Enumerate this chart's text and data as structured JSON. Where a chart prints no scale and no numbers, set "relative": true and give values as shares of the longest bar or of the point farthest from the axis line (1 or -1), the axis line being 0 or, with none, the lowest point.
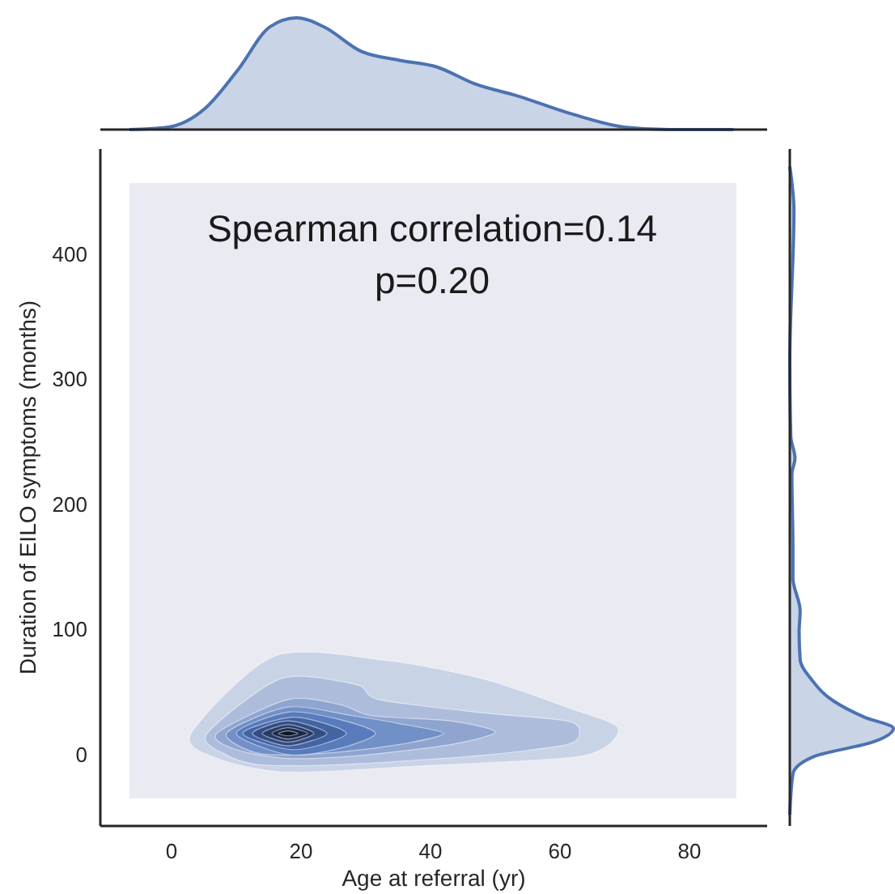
{
  "chart_data": [
    {
      "type": "area",
      "relative": true,
      "xlim": [
        -11,
        92
      ],
      "series": [
        {
          "color": "#4c72b0",
          "x": [
            -6.5,
            -0.7,
            5.2,
            10.2,
            15.2,
            19.3,
            23.5,
            29.3,
            35.2,
            41,
            46.8,
            53.5,
            61.8,
            70.2,
            76.8,
            86.8
          ],
          "values": [
            0,
            0.02,
            0.19,
            0.53,
            0.92,
            1,
            0.92,
            0.7,
            0.62,
            0.56,
            0.41,
            0.3,
            0.14,
            0.02,
            0,
            0
          ]
        }
      ]
    },
    {
      "type": "area",
      "xlabel": "Age at referral (yr)",
      "ylabel": "Duration of EILO symptoms (months)",
      "xlim": [
        -11,
        92
      ],
      "ylim": [
        -57,
        484
      ],
      "xticks": [
        0,
        20,
        40,
        60,
        80
      ],
      "yticks": [
        0,
        100,
        200,
        300,
        400
      ],
      "annotations": [
        "Spearman correlation=0.14",
        "p=0.20"
      ],
      "series": [
        {
          "color": "#c9d3e6",
          "x": [
            3,
            16,
            33.5,
            48.5,
            61,
            69,
            63.5,
            38.5,
            18,
            7
          ],
          "values": [
            17,
            79,
            75,
            60,
            38,
            21,
            -1,
            -9,
            -14,
            -3
          ]
        },
        {
          "color": "#aebcdc",
          "x": [
            5.5,
            17,
            28.5,
            32,
            47,
            61,
            63,
            61,
            47,
            26,
            13.5,
            8
          ],
          "values": [
            17,
            61,
            56,
            44,
            34,
            27,
            18,
            8,
            -1,
            -8,
            -8,
            1
          ]
        },
        {
          "color": "#8fa5d0",
          "x": [
            7,
            18,
            26,
            31,
            43,
            50,
            43,
            28.5,
            18,
            10
          ],
          "values": [
            17,
            44,
            40,
            31,
            27,
            18,
            8,
            -1,
            -3,
            4
          ]
        },
        {
          "color": "#7190c8",
          "x": [
            8.5,
            18,
            28,
            35,
            42,
            35,
            23.5,
            13.5
          ],
          "values": [
            17,
            38,
            31,
            25,
            17,
            8,
            1,
            1
          ]
        },
        {
          "color": "#587bbc",
          "x": [
            10,
            18,
            26,
            31.5,
            26,
            18
          ],
          "values": [
            17,
            34,
            28,
            17,
            5,
            0
          ]
        },
        {
          "color": "#4364a3",
          "x": [
            11,
            19,
            27,
            19
          ],
          "values": [
            17,
            30,
            17,
            4
          ]
        },
        {
          "color": "#334e85",
          "x": [
            12.5,
            18,
            24,
            18
          ],
          "values": [
            17,
            27,
            17,
            7
          ]
        },
        {
          "color": "#273b66",
          "x": [
            14,
            18,
            22,
            18
          ],
          "values": [
            17,
            24,
            17,
            10
          ]
        },
        {
          "color": "#1b2848",
          "x": [
            15.5,
            18,
            21,
            18
          ],
          "values": [
            17,
            21.5,
            17,
            12.5
          ]
        },
        {
          "color": "#0f1628",
          "x": [
            16.5,
            18,
            19.5,
            18
          ],
          "values": [
            17,
            19,
            17,
            15
          ]
        }
      ]
    },
    {
      "type": "area",
      "orientation": "horizontal",
      "relative": true,
      "ylim": [
        -57,
        484
      ],
      "series": [
        {
          "color": "#4c72b0",
          "x": [
            -48,
            -15.5,
            -1.3,
            10,
            21,
            30,
            43,
            60,
            76,
            98,
            115,
            141,
            167,
            224,
            237,
            254,
            314,
            435,
            470
          ],
          "values": [
            0,
            0.03,
            0.24,
            0.8,
            1,
            0.72,
            0.42,
            0.21,
            0.1,
            0.09,
            0.1,
            0.03,
            0.03,
            0.02,
            0.05,
            0.01,
            0,
            0.04,
            0
          ]
        }
      ]
    }
  ]
}
